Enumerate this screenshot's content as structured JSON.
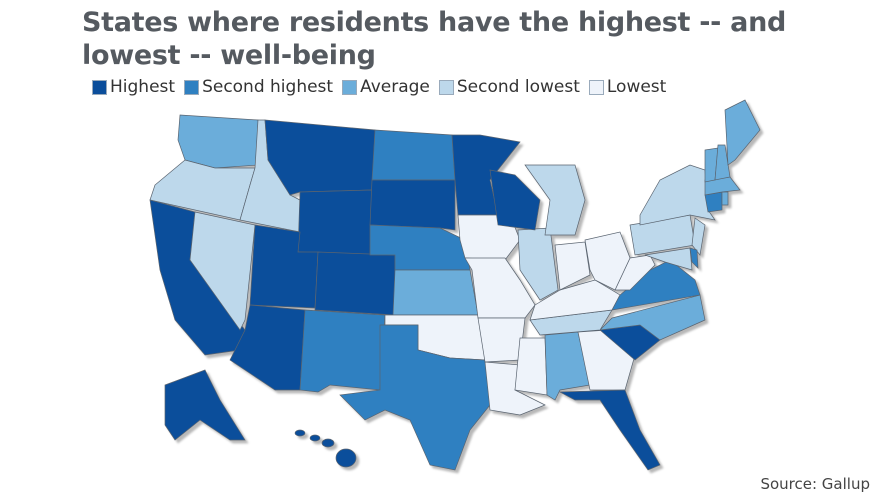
{
  "title": "States where residents have the highest -- and lowest -- well-being",
  "legend": [
    {
      "key": "highest",
      "label": "Highest",
      "color": "#0b4e9b"
    },
    {
      "key": "second_highest",
      "label": "Second highest",
      "color": "#2f80c1"
    },
    {
      "key": "average",
      "label": "Average",
      "color": "#6badda"
    },
    {
      "key": "second_lowest",
      "label": "Second lowest",
      "color": "#bdd8eb"
    },
    {
      "key": "lowest",
      "label": "Lowest",
      "color": "#eef3fa"
    }
  ],
  "states": {
    "CA": "highest",
    "AZ": "highest",
    "UT": "highest",
    "CO": "highest",
    "WY": "highest",
    "MT": "highest",
    "SD": "highest",
    "MN": "highest",
    "WI": "highest",
    "AK": "highest",
    "HI": "highest",
    "SC": "highest",
    "FL": "highest",
    "ND": "second_highest",
    "NE": "second_highest",
    "NM": "second_highest",
    "TX": "second_highest",
    "VA": "second_highest",
    "CT": "second_highest",
    "DE": "second_highest",
    "WA": "average",
    "KS": "average",
    "AL": "average",
    "NC": "average",
    "VT": "average",
    "NH": "average",
    "ME": "average",
    "MA": "average",
    "RI": "average",
    "OR": "second_lowest",
    "ID": "second_lowest",
    "NV": "second_lowest",
    "IL": "second_lowest",
    "MI": "second_lowest",
    "NY": "second_lowest",
    "PA": "second_lowest",
    "NJ": "second_lowest",
    "MD": "second_lowest",
    "TN": "second_lowest",
    "IA": "lowest",
    "MO": "lowest",
    "OK": "lowest",
    "AR": "lowest",
    "LA": "lowest",
    "MS": "lowest",
    "GA": "lowest",
    "IN": "lowest",
    "OH": "lowest",
    "KY": "lowest",
    "WV": "lowest"
  },
  "source": "Source: Gallup"
}
